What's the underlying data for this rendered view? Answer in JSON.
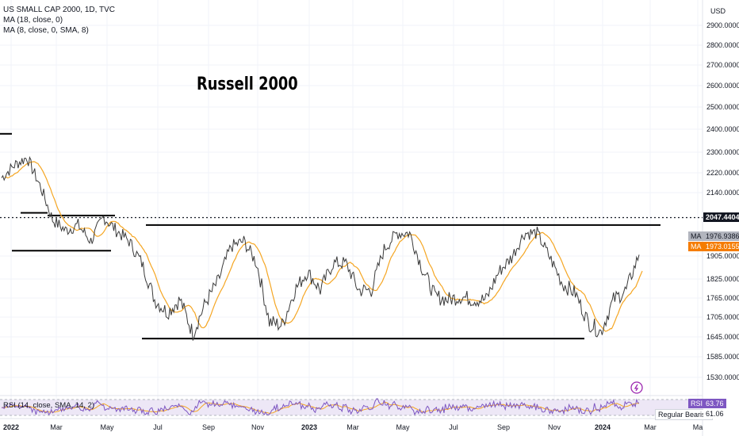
{
  "header": {
    "symbol": "US SMALL CAP 2000, 1D, TVC",
    "ma1": "MA (18, close, 0)",
    "ma2": "MA (8, close, 0, SMA, 8)"
  },
  "overlay_title": "Russell 2000",
  "rsi_label": "RSI (14, close, SMA, 14, 2)",
  "price_axis": {
    "currency": "USD",
    "ticks": [
      "2900.0000",
      "2800.0000",
      "2700.0000",
      "2600.0000",
      "2500.0000",
      "2400.0000",
      "2300.0000",
      "2220.0000",
      "2140.0000",
      "1905.0000",
      "1825.0000",
      "1765.0000",
      "1705.0000",
      "1645.0000",
      "1585.0000",
      "1530.0000"
    ]
  },
  "badges": {
    "last_price": "2047.4404",
    "ma_label": "MA",
    "ma1_value": "1976.9386",
    "ma2_value": "1973.0155",
    "rsi_tag": "RSI",
    "rsi_value": "63.76",
    "regular_bearish": "Regular Bearish",
    "rsi_secondary": "61.06"
  },
  "time_axis": [
    "2022",
    "Mar",
    "May",
    "Jul",
    "Sep",
    "Nov",
    "2023",
    "Mar",
    "May",
    "Jul",
    "Sep",
    "Nov",
    "2024",
    "Mar",
    "Ma"
  ],
  "colors": {
    "price_line": "#3a3a3a",
    "ma_line": "#f5a623",
    "rsi_line": "#7e57c2",
    "rsi_band": "#ede7f6",
    "badge_dark": "#131722",
    "badge_gray": "#787b86",
    "badge_orange": "#f57c00"
  },
  "chart_data": {
    "type": "line",
    "title": "US SMALL CAP 2000, 1D, TVC",
    "annotation": "Russell 2000",
    "ylabel": "USD",
    "x": [
      "2022-01",
      "2022-01",
      "2022-02",
      "2022-02",
      "2022-03",
      "2022-03",
      "2022-04",
      "2022-04",
      "2022-05",
      "2022-05",
      "2022-06",
      "2022-06",
      "2022-07",
      "2022-07",
      "2022-08",
      "2022-08",
      "2022-09",
      "2022-09",
      "2022-10",
      "2022-10",
      "2022-11",
      "2022-11",
      "2022-12",
      "2022-12",
      "2023-01",
      "2023-01",
      "2023-02",
      "2023-02",
      "2023-03",
      "2023-03",
      "2023-04",
      "2023-04",
      "2023-05",
      "2023-05",
      "2023-06",
      "2023-06",
      "2023-07",
      "2023-07",
      "2023-08",
      "2023-08",
      "2023-09",
      "2023-09",
      "2023-10",
      "2023-10",
      "2023-11",
      "2023-11",
      "2023-12",
      "2023-12",
      "2024-01",
      "2024-01",
      "2024-02"
    ],
    "series": [
      {
        "values": [
          2200,
          2250,
          2280,
          2170,
          2040,
          2000,
          2020,
          1960,
          2050,
          2000,
          1960,
          1880,
          1760,
          1720,
          1760,
          1655,
          1750,
          1820,
          1940,
          1960,
          1880,
          1690,
          1680,
          1790,
          1850,
          1790,
          1880,
          1880,
          1790,
          1790,
          1930,
          1990,
          1990,
          1860,
          1770,
          1760,
          1770,
          1760,
          1760,
          1850,
          1900,
          1990,
          1990,
          1900,
          1810,
          1780,
          1690,
          1660,
          1760,
          1790,
          1910
        ]
      }
    ],
    "ylim": [
      1500,
      2960
    ],
    "levels": {
      "resistance_dotted": 2047.4404,
      "range_top": 2020,
      "range_bottom": 1640,
      "upper_line_1": 2380,
      "upper_line_2": 2065,
      "upper_line_3": 2055,
      "support_2022": 1925
    },
    "rsi": {
      "overbought": 70,
      "oversold": 30,
      "last": 63.76,
      "ma_last": 61.06
    }
  }
}
